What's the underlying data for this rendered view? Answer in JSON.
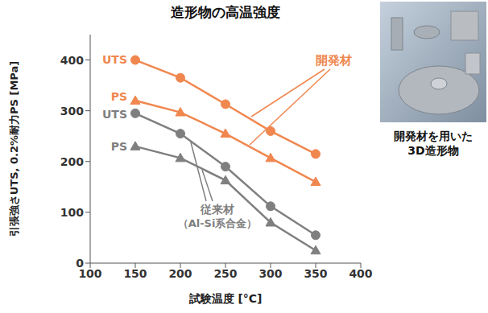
{
  "chart_data": {
    "type": "line",
    "title": "造形物の高温強度",
    "x_label": "試験温度 [°C]",
    "y_label": "引張強さUTS, 0.2%耐力PS [MPa]",
    "x": [
      150,
      200,
      250,
      300,
      350
    ],
    "xlim": [
      100,
      400
    ],
    "xticks": [
      100,
      150,
      200,
      250,
      300,
      350,
      400
    ],
    "ylim": [
      0,
      450
    ],
    "yticks": [
      0,
      100,
      200,
      300,
      400
    ],
    "grid": false,
    "series": [
      {
        "name": "UTS",
        "color": "#f0874f",
        "marker": "circle",
        "line_style": "solid",
        "values": [
          400,
          365,
          313,
          260,
          215
        ]
      },
      {
        "name": "PS",
        "color": "#f0874f",
        "marker": "triangle",
        "line_style": "solid",
        "values": [
          320,
          297,
          255,
          207,
          160
        ]
      },
      {
        "name": "UTS",
        "color": "#7f7f7f",
        "marker": "circle",
        "line_style": "solid",
        "values": [
          295,
          255,
          190,
          112,
          55
        ]
      },
      {
        "name": "PS",
        "color": "#7f7f7f",
        "marker": "triangle",
        "line_style": "solid",
        "values": [
          230,
          207,
          163,
          80,
          25
        ]
      }
    ],
    "annotations": [
      "開発材",
      "従来材",
      "（Al-Si系合金）"
    ],
    "image_caption": [
      "開発材を用いた",
      "3D造形物"
    ]
  }
}
